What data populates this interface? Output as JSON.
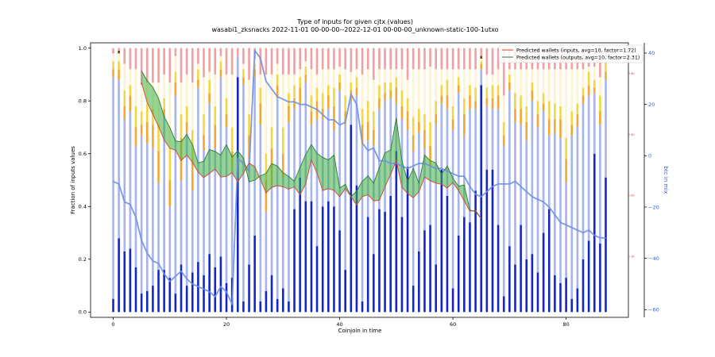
{
  "chart_data": {
    "type": "bar",
    "title": "Type of inputs for given cjtx (values)",
    "subtitle": "wasabi1_zksnacks 2022-11-01 00-00-00--2022-12-01 00-00-00_unknown-static-100-1utxo",
    "xlabel": "Coinjoin in time",
    "ylabel": "Fraction of inputs values",
    "y2label": "btc in mix",
    "xlim": [
      -4,
      91
    ],
    "ylim": [
      -0.02,
      1.02
    ],
    "y2lim": [
      -63,
      44
    ],
    "y3lim": [
      0,
      45
    ],
    "xticks": [
      0,
      20,
      40,
      60,
      80
    ],
    "yticks": [
      0.0,
      0.2,
      0.4,
      0.6,
      0.8,
      1.0
    ],
    "y2ticks": [
      -60,
      -40,
      -20,
      0,
      20,
      40
    ],
    "y3ticks": [
      10,
      20,
      30,
      40
    ],
    "legend_position": "top-right",
    "colors": {
      "bar_bottom": "#1426c8",
      "bar_light_blue": "#a6b4ee",
      "bar_cream": "#fff2cc",
      "bar_orange": "#f0a830",
      "bar_yellow": "#f5d540",
      "bar_pink": "#f0a0a0",
      "bar_dark": "#6b3a1f",
      "line_blue": "#6f8fe5",
      "band_fill": "#3fae3f",
      "line_inputs": "#d9412b",
      "line_outputs": "#2e7d32",
      "axis_right": "#3a5bd9",
      "axis_right_red": "#d62728"
    },
    "bar_bottom": [
      0.05,
      0.28,
      0.23,
      0.24,
      0.17,
      0.07,
      0.08,
      0.1,
      0.16,
      0.16,
      0.13,
      0.07,
      0.18,
      0.1,
      0.15,
      0.19,
      0.14,
      0.22,
      0.17,
      0.21,
      0.11,
      0.13,
      0.89,
      0.04,
      0.18,
      0.29,
      0.04,
      0.08,
      0.14,
      0.05,
      0.09,
      0.04,
      0.39,
      0.51,
      0.42,
      0.42,
      0.25,
      0.4,
      0.42,
      0.4,
      0.31,
      0.16,
      0.71,
      0.48,
      0.04,
      0.36,
      0.22,
      0.39,
      0.38,
      0.44,
      0.61,
      0.36,
      0.55,
      0.1,
      0.23,
      0.31,
      0.33,
      0.18,
      0.54,
      0.44,
      0.09,
      0.29,
      0.36,
      0.34,
      0.46,
      0.86,
      0.54,
      0.54,
      0.33,
      0.06,
      0.25,
      0.18,
      0.33,
      0.2,
      0.22,
      0.15,
      0.3,
      0.39,
      0.14,
      0.11,
      0.13,
      0.05,
      0.09,
      0.2,
      0.27,
      0.6,
      0.26,
      0.51
    ],
    "bar_light_blue": [
      0.84,
      0.6,
      0.5,
      0.52,
      0.46,
      0.6,
      0.56,
      0.52,
      0.33,
      0.58,
      0.27,
      0.75,
      0.32,
      0.58,
      0.31,
      0.66,
      0.47,
      0.57,
      0.45,
      0.68,
      0.59,
      0.41,
      0.08,
      0.82,
      0.4,
      0.6,
      0.67,
      0.3,
      0.34,
      0.76,
      0.42,
      0.68,
      0.38,
      0.28,
      0.45,
      0.29,
      0.48,
      0.33,
      0.35,
      0.29,
      0.53,
      0.55,
      0.09,
      0.34,
      0.59,
      0.29,
      0.41,
      0.38,
      0.42,
      0.37,
      0.18,
      0.37,
      0.14,
      0.51,
      0.45,
      0.31,
      0.22,
      0.53,
      0.25,
      0.33,
      0.6,
      0.54,
      0.31,
      0.43,
      0.31,
      0.06,
      0.24,
      0.23,
      0.44,
      0.57,
      0.59,
      0.54,
      0.38,
      0.45,
      0.58,
      0.55,
      0.46,
      0.28,
      0.54,
      0.55,
      0.36,
      0.62,
      0.61,
      0.59,
      0.55,
      0.23,
      0.45,
      0.37
    ],
    "bar_orange": [
      0.03,
      0.04,
      0.05,
      0.06,
      0.07,
      0.04,
      0.08,
      0.09,
      0.12,
      0.03,
      0.1,
      0.05,
      0.16,
      0.04,
      0.12,
      0.03,
      0.06,
      0.04,
      0.09,
      0.03,
      0.05,
      0.07,
      0.0,
      0.03,
      0.09,
      0.03,
      0.08,
      0.12,
      0.14,
      0.05,
      0.09,
      0.06,
      0.04,
      0.06,
      0.03,
      0.05,
      0.07,
      0.04,
      0.05,
      0.09,
      0.03,
      0.05,
      0.04,
      0.03,
      0.08,
      0.07,
      0.06,
      0.04,
      0.03,
      0.03,
      0.06,
      0.05,
      0.07,
      0.06,
      0.04,
      0.07,
      0.08,
      0.04,
      0.03,
      0.05,
      0.04,
      0.03,
      0.08,
      0.05,
      0.03,
      0.02,
      0.03,
      0.04,
      0.05,
      0.04,
      0.03,
      0.05,
      0.06,
      0.07,
      0.04,
      0.05,
      0.03,
      0.06,
      0.05,
      0.07,
      0.09,
      0.04,
      0.05,
      0.03,
      0.04,
      0.02,
      0.05,
      0.03
    ],
    "bar_yellow": [
      0.03,
      0.03,
      0.06,
      0.04,
      0.08,
      0.05,
      0.07,
      0.06,
      0.1,
      0.04,
      0.12,
      0.04,
      0.09,
      0.06,
      0.11,
      0.04,
      0.08,
      0.05,
      0.07,
      0.03,
      0.06,
      0.09,
      0.0,
      0.03,
      0.08,
      0.02,
      0.06,
      0.1,
      0.08,
      0.04,
      0.1,
      0.05,
      0.05,
      0.04,
      0.03,
      0.06,
      0.05,
      0.06,
      0.04,
      0.07,
      0.03,
      0.06,
      0.03,
      0.04,
      0.06,
      0.08,
      0.07,
      0.05,
      0.04,
      0.03,
      0.04,
      0.06,
      0.05,
      0.07,
      0.05,
      0.06,
      0.09,
      0.05,
      0.04,
      0.06,
      0.05,
      0.03,
      0.06,
      0.04,
      0.05,
      0.01,
      0.04,
      0.05,
      0.04,
      0.05,
      0.03,
      0.06,
      0.05,
      0.06,
      0.03,
      0.05,
      0.04,
      0.07,
      0.06,
      0.05,
      0.08,
      0.05,
      0.04,
      0.03,
      0.05,
      0.03,
      0.06,
      0.04
    ],
    "bar_cream": [
      0.03,
      0.03,
      0.1,
      0.06,
      0.14,
      0.1,
      0.08,
      0.1,
      0.16,
      0.09,
      0.25,
      0.06,
      0.12,
      0.12,
      0.18,
      0.02,
      0.14,
      0.03,
      0.12,
      0.02,
      0.09,
      0.2,
      0.0,
      0.02,
      0.13,
      0.02,
      0.05,
      0.3,
      0.2,
      0.04,
      0.2,
      0.07,
      0.04,
      0.03,
      0.02,
      0.1,
      0.05,
      0.09,
      0.06,
      0.07,
      0.03,
      0.1,
      0.04,
      0.03,
      0.13,
      0.12,
      0.12,
      0.06,
      0.05,
      0.05,
      0.03,
      0.08,
      0.07,
      0.18,
      0.15,
      0.17,
      0.21,
      0.12,
      0.06,
      0.04,
      0.14,
      0.03,
      0.11,
      0.06,
      0.07,
      0.01,
      0.05,
      0.04,
      0.06,
      0.1,
      0.02,
      0.09,
      0.1,
      0.14,
      0.05,
      0.12,
      0.09,
      0.12,
      0.13,
      0.14,
      0.26,
      0.16,
      0.13,
      0.07,
      0.02,
      0.05,
      0.07,
      0.01
    ],
    "bar_dark": [
      0,
      0.01,
      0,
      0,
      0,
      0,
      0,
      0,
      0,
      0,
      0,
      0,
      0,
      0,
      0,
      0,
      0,
      0,
      0,
      0,
      0,
      0,
      0,
      0,
      0,
      0,
      0,
      0,
      0,
      0,
      0,
      0,
      0,
      0,
      0,
      0,
      0,
      0,
      0,
      0,
      0,
      0,
      0,
      0,
      0,
      0,
      0,
      0,
      0,
      0,
      0,
      0,
      0,
      0,
      0,
      0,
      0,
      0,
      0,
      0,
      0,
      0,
      0,
      0,
      0,
      0.01,
      0,
      0,
      0,
      0,
      0,
      0,
      0,
      0,
      0,
      0,
      0,
      0,
      0,
      0,
      0,
      0,
      0,
      0,
      0,
      0,
      0,
      0
    ],
    "btc_in_mix": [
      -10,
      -11,
      -18,
      -19,
      -24,
      -33,
      -38,
      -41,
      -42,
      -46,
      -49,
      -47,
      -45,
      -48,
      -50,
      -51,
      -52,
      -53,
      -55,
      -51,
      -53,
      -58,
      -1,
      -3,
      -6,
      41,
      38,
      29,
      26,
      23,
      22,
      21,
      21,
      20,
      20,
      19,
      18,
      16,
      14,
      14,
      12,
      13,
      24,
      20,
      5,
      2,
      3,
      -2,
      -2,
      -3,
      -3,
      -4,
      -5,
      -4,
      -3,
      -3,
      -4,
      -5,
      -5,
      -6,
      -7,
      -8,
      -8,
      -12,
      -15,
      -16,
      -14,
      -12,
      -11,
      -11,
      -11,
      -10,
      -12,
      -14,
      -16,
      -17,
      -18,
      -20,
      -23,
      -26,
      -27,
      -28,
      -29,
      -30,
      -29,
      -31,
      -32,
      -32
    ],
    "series": [
      {
        "name": "Predicted wallets (inputs, avg=10, factor=1.72)",
        "x_start": 5,
        "values": [
          38.5,
          35.2,
          33.3,
          31.3,
          29.1,
          27.7,
          27.4,
          25.7,
          26.6,
          25.4,
          23.8,
          22.9,
          23.6,
          24.3,
          23.0,
          23.1,
          23.7,
          22.2,
          23.6,
          25.3,
          24.7,
          22.6,
          20.4,
          21.3,
          21.6,
          21.4,
          21.0,
          21.4,
          20.1,
          21.9,
          25.8,
          23.6,
          20.8,
          21.1,
          20.8,
          19.8,
          21.1,
          19.8,
          18.4,
          19.8,
          20.1,
          19.1,
          19.2,
          21.4,
          23.4,
          25.7,
          21.3,
          20.3,
          19.6,
          20.6,
          23.0,
          22.4,
          22.0,
          21.8,
          21.2,
          22.1,
          20.8,
          19.1,
          17.4,
          17.5,
          16.2
        ]
      },
      {
        "name": "Predicted wallets (outputs, avg=10, factor=2.31)",
        "x_start": 5,
        "values": [
          40.4,
          38.8,
          37.7,
          35.9,
          32.9,
          31.1,
          28.9,
          28.8,
          30.0,
          28.3,
          25.3,
          25.6,
          27.5,
          27.2,
          26.6,
          28.3,
          26.3,
          27.3,
          26.1,
          22.2,
          22.5,
          23.2,
          23.6,
          25.2,
          24.8,
          23.7,
          23.1,
          22.3,
          24.6,
          26.7,
          28.3,
          26.9,
          26.2,
          25.8,
          26.6,
          21.2,
          21.8,
          19.8,
          20.7,
          22.3,
          23.2,
          22.0,
          24.5,
          27.0,
          27.4,
          32.7,
          25.7,
          22.3,
          24.4,
          22.0,
          26.6,
          25.7,
          25.3,
          23.5,
          24.8,
          22.8,
          21.5,
          21.7,
          17.6,
          17.3,
          16.2
        ]
      }
    ]
  }
}
